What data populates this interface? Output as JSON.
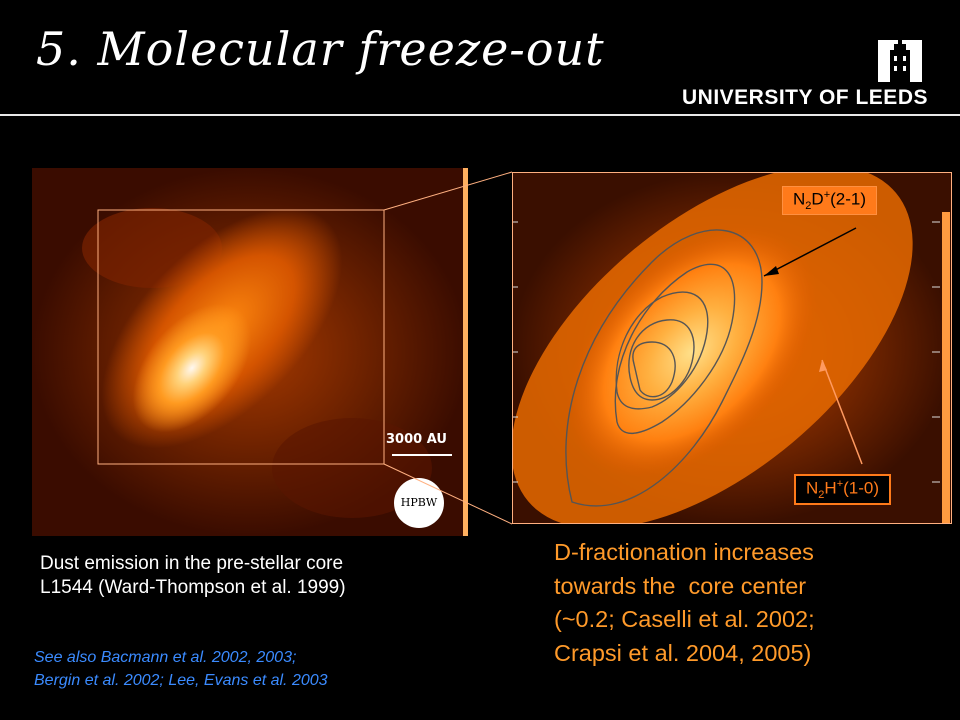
{
  "slide": {
    "title": "5. Molecular freeze-out",
    "institution": "UNIVERSITY OF LEEDS"
  },
  "left_panel": {
    "scale_label": "3000 AU",
    "beam_label": "HPBW",
    "caption_line1": "Dust emission in the pre-stellar core",
    "caption_line2": "L1544 (Ward-Thompson et al. 1999)"
  },
  "see_also": {
    "line1": "See also Bacmann et al. 2002, 2003;",
    "line2": "Bergin et al. 2002; Lee, Evans et al. 2003"
  },
  "right_panel": {
    "label_top": {
      "base1": "N",
      "sub1": "2",
      "base2": "D",
      "sup": "+",
      "rest": "(2-1)"
    },
    "label_bottom": {
      "base1": "N",
      "sub1": "2",
      "base2": "H",
      "sup": "+",
      "rest": "(1-0)"
    },
    "caption_line1": "D-fractionation increases",
    "caption_line2": "towards the  core center",
    "caption_line3": "(~0.2; Caselli et al. 2002;",
    "caption_line4": "Crapsi et al. 2004, 2005)"
  },
  "colors": {
    "accent_orange": "#ff7a1a",
    "caption_orange": "#ff9a2a",
    "link_blue": "#3b8bff",
    "background": "#000000"
  }
}
